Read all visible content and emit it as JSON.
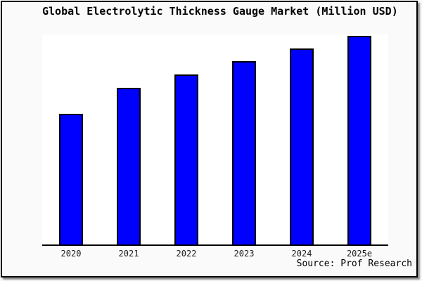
{
  "page": {
    "background": "#fafafa",
    "frame_border_color": "#000000",
    "frame_shadow_color": "#8f8f8f",
    "plot_background": "#ffffff"
  },
  "chart_data": {
    "type": "bar",
    "title": "Global Electrolytic Thickness Gauge Market (Million USD)",
    "categories": [
      "2020",
      "2021",
      "2022",
      "2023",
      "2024",
      "2025e"
    ],
    "values": [
      62.6,
      75.1,
      81.5,
      87.9,
      93.9,
      100
    ],
    "values_unit": "relative bar height, 2025e = 100 (y-axis has no tick labels)",
    "xlabel": "",
    "ylabel": "",
    "ylim": [
      0,
      100
    ],
    "grid": false,
    "legend": false,
    "bar_color": "#0000ff",
    "bar_border_color": "#000000",
    "axis_line_color": "#000000"
  },
  "footer": {
    "source_label": "Source: Prof Research"
  }
}
